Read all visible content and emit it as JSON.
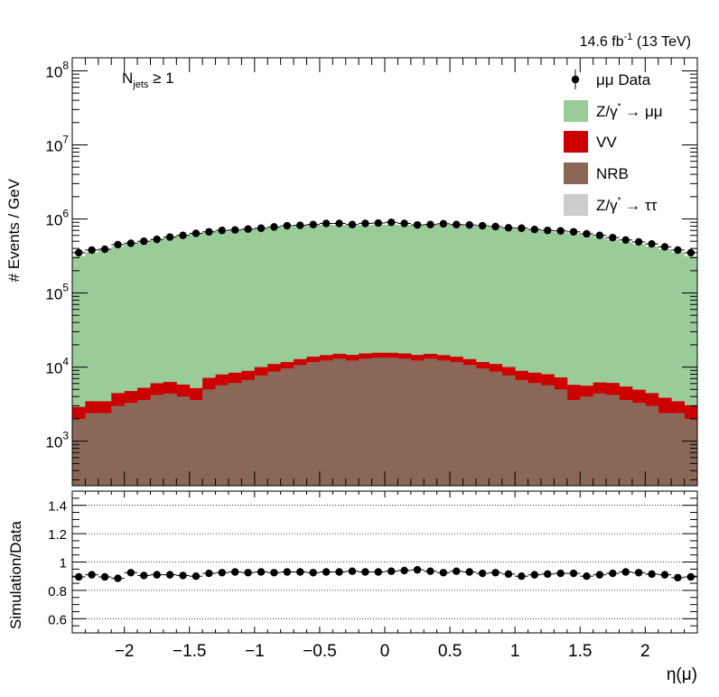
{
  "header": {
    "lumi_value": "14.6 fb",
    "lumi_exp": "-1",
    "energy": " (13 TeV)"
  },
  "annotation": {
    "main": "N",
    "sub": "jets",
    "rest": " ≥ 1"
  },
  "chart_data": {
    "type": "histogram",
    "x": [
      -2.35,
      -2.25,
      -2.15,
      -2.05,
      -1.95,
      -1.85,
      -1.75,
      -1.65,
      -1.55,
      -1.45,
      -1.35,
      -1.25,
      -1.15,
      -1.05,
      -0.95,
      -0.85,
      -0.75,
      -0.65,
      -0.55,
      -0.45,
      -0.35,
      -0.25,
      -0.15,
      -0.05,
      0.05,
      0.15,
      0.25,
      0.35,
      0.45,
      0.55,
      0.65,
      0.75,
      0.85,
      0.95,
      1.05,
      1.15,
      1.25,
      1.35,
      1.45,
      1.55,
      1.65,
      1.75,
      1.85,
      1.95,
      2.05,
      2.15,
      2.25,
      2.35
    ],
    "xlim": [
      -2.4,
      2.4
    ],
    "xlabel": "η(μ)",
    "xticks": [
      "−2",
      "−1.5",
      "−1",
      "−0.5",
      "0",
      "0.5",
      "1",
      "1.5",
      "2"
    ],
    "top_panel": {
      "ylabel": "# Events / GeV",
      "yscale": "log",
      "ylim": [
        250,
        150000000
      ],
      "yticks": [
        {
          "base": "10",
          "exp": "3"
        },
        {
          "base": "10",
          "exp": "4"
        },
        {
          "base": "10",
          "exp": "5"
        },
        {
          "base": "10",
          "exp": "6"
        },
        {
          "base": "10",
          "exp": "7"
        },
        {
          "base": "10",
          "exp": "8"
        }
      ],
      "series": [
        {
          "name": "Z/γ* → μμ",
          "color": "#99cc99",
          "role": "stack",
          "values": [
            310000,
            350000,
            385000,
            420000,
            450000,
            480000,
            520000,
            560000,
            600000,
            630000,
            650000,
            670000,
            690000,
            710000,
            730000,
            750000,
            770000,
            790000,
            810000,
            820000,
            810000,
            800000,
            810000,
            820000,
            820000,
            810000,
            800000,
            810000,
            820000,
            810000,
            790000,
            770000,
            750000,
            730000,
            710000,
            690000,
            670000,
            650000,
            630000,
            600000,
            560000,
            520000,
            480000,
            450000,
            420000,
            385000,
            350000,
            310000
          ]
        },
        {
          "name": "VV",
          "color": "#cc0000",
          "role": "stack",
          "values": [
            900,
            1050,
            1050,
            1450,
            1450,
            1650,
            1850,
            1900,
            1800,
            1600,
            2150,
            2250,
            2300,
            2200,
            2300,
            2300,
            2100,
            2100,
            2100,
            2200,
            2100,
            2300,
            2300,
            2200,
            2200,
            2300,
            2300,
            2100,
            2200,
            2100,
            2100,
            2100,
            2300,
            2300,
            2200,
            2300,
            2300,
            2250,
            2150,
            1600,
            1800,
            1900,
            1850,
            1650,
            1450,
            1450,
            1050,
            1050
          ]
        },
        {
          "name": "NRB",
          "color": "#8a6757",
          "role": "stack",
          "values": [
            2000,
            2400,
            2400,
            3000,
            3300,
            3600,
            4200,
            4400,
            4000,
            3600,
            5000,
            5700,
            6100,
            6700,
            7700,
            8700,
            9600,
            10700,
            11700,
            12300,
            13000,
            12300,
            13000,
            13400,
            13400,
            13000,
            12300,
            13000,
            12300,
            11700,
            10700,
            9600,
            8700,
            7700,
            6700,
            6100,
            5700,
            5000,
            3600,
            4000,
            4400,
            4200,
            3600,
            3300,
            3000,
            2400,
            2400,
            2000
          ]
        },
        {
          "name": "Z/γ* → ττ",
          "color": "#cccccc",
          "role": "stack",
          "values": [
            0,
            0,
            0,
            0,
            0,
            0,
            0,
            0,
            0,
            0,
            0,
            0,
            0,
            0,
            0,
            0,
            0,
            0,
            0,
            0,
            0,
            0,
            0,
            0,
            0,
            0,
            0,
            0,
            0,
            0,
            0,
            0,
            0,
            0,
            0,
            0,
            0,
            0,
            0,
            0,
            0,
            0,
            0,
            0,
            0,
            0,
            0,
            0
          ]
        },
        {
          "name": "μμ Data",
          "color": "#000000",
          "role": "points",
          "values": [
            350000,
            380000,
            390000,
            450000,
            470000,
            500000,
            530000,
            570000,
            600000,
            640000,
            670000,
            700000,
            710000,
            730000,
            750000,
            780000,
            810000,
            820000,
            840000,
            870000,
            870000,
            840000,
            870000,
            880000,
            900000,
            870000,
            830000,
            840000,
            860000,
            840000,
            830000,
            810000,
            790000,
            760000,
            750000,
            720000,
            700000,
            690000,
            670000,
            630000,
            600000,
            560000,
            520000,
            490000,
            460000,
            420000,
            380000,
            350000
          ]
        }
      ],
      "legend": [
        "μμ Data",
        "Z/γ* → μμ",
        "VV",
        "NRB",
        "Z/γ* → ττ"
      ],
      "legend_position": "top-right"
    },
    "ratio_panel": {
      "ylabel": "Simulation/Data",
      "ylim": [
        0.5,
        1.5
      ],
      "yticks": [
        "0.6",
        "0.8",
        "1",
        "1.2",
        "1.4"
      ],
      "grid": true,
      "values": [
        0.895,
        0.91,
        0.895,
        0.885,
        0.925,
        0.905,
        0.91,
        0.91,
        0.905,
        0.9,
        0.92,
        0.925,
        0.93,
        0.925,
        0.93,
        0.925,
        0.93,
        0.93,
        0.925,
        0.93,
        0.93,
        0.935,
        0.93,
        0.93,
        0.935,
        0.94,
        0.945,
        0.935,
        0.925,
        0.935,
        0.93,
        0.92,
        0.925,
        0.915,
        0.9,
        0.91,
        0.915,
        0.92,
        0.92,
        0.9,
        0.91,
        0.92,
        0.93,
        0.925,
        0.915,
        0.91,
        0.89,
        0.895
      ]
    }
  }
}
